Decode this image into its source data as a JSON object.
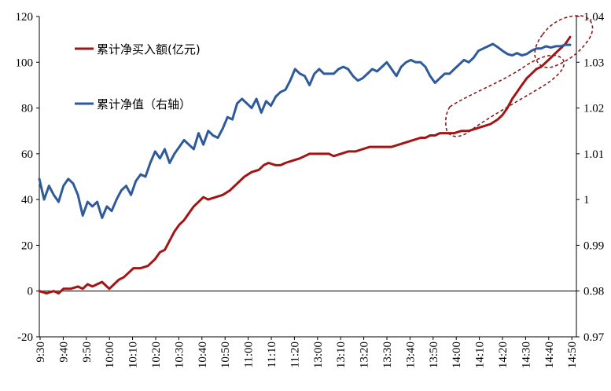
{
  "chart_data": {
    "type": "line",
    "x_ticks": [
      "9:30",
      "9:40",
      "9:50",
      "10:00",
      "10:10",
      "10:20",
      "10:30",
      "10:40",
      "10:50",
      "11:00",
      "11:10",
      "11:20",
      "13:00",
      "13:10",
      "13:20",
      "13:30",
      "13:40",
      "13:50",
      "14:00",
      "14:10",
      "14:20",
      "14:30",
      "14:40",
      "14:50"
    ],
    "left_axis": {
      "ylim": [
        -20,
        120
      ],
      "ticks": [
        "-20",
        "0",
        "20",
        "40",
        "60",
        "80",
        "100",
        "120"
      ]
    },
    "right_axis": {
      "ylim": [
        0.97,
        1.04
      ],
      "ticks": [
        "0.97",
        "0.98",
        "0.99",
        "1",
        "1.01",
        "1.02",
        "1.03",
        "1.04"
      ]
    },
    "grid": false,
    "legend_position": "top-left",
    "series": [
      {
        "name": "累计净买入额(亿元)",
        "axis": "left",
        "color": "#A31515",
        "points": [
          [
            0,
            0
          ],
          [
            3,
            -1
          ],
          [
            6,
            0
          ],
          [
            8,
            -1
          ],
          [
            10,
            1
          ],
          [
            13,
            1
          ],
          [
            16,
            2
          ],
          [
            18,
            1
          ],
          [
            20,
            3
          ],
          [
            22,
            2
          ],
          [
            24,
            3
          ],
          [
            26,
            4
          ],
          [
            27,
            3
          ],
          [
            29,
            1
          ],
          [
            31,
            3
          ],
          [
            33,
            5
          ],
          [
            35,
            6
          ],
          [
            37,
            8
          ],
          [
            39,
            10
          ],
          [
            42,
            10
          ],
          [
            45,
            11
          ],
          [
            48,
            14
          ],
          [
            50,
            17
          ],
          [
            52,
            18
          ],
          [
            54,
            22
          ],
          [
            56,
            26
          ],
          [
            58,
            29
          ],
          [
            60,
            31
          ],
          [
            62,
            34
          ],
          [
            64,
            37
          ],
          [
            66,
            39
          ],
          [
            68,
            41
          ],
          [
            70,
            40
          ],
          [
            73,
            41
          ],
          [
            76,
            42
          ],
          [
            79,
            44
          ],
          [
            81,
            46
          ],
          [
            83,
            48
          ],
          [
            85,
            50
          ],
          [
            88,
            52
          ],
          [
            91,
            53
          ],
          [
            93,
            55
          ],
          [
            95,
            56
          ],
          [
            98,
            55
          ],
          [
            100,
            55
          ],
          [
            102,
            56
          ],
          [
            105,
            57
          ],
          [
            108,
            58
          ],
          [
            110,
            59
          ],
          [
            112,
            60
          ],
          [
            115,
            60
          ],
          [
            117,
            60
          ],
          [
            120,
            60
          ],
          [
            122,
            59
          ],
          [
            125,
            60
          ],
          [
            128,
            61
          ],
          [
            131,
            61
          ],
          [
            134,
            62
          ],
          [
            137,
            63
          ],
          [
            140,
            63
          ],
          [
            143,
            63
          ],
          [
            146,
            63
          ],
          [
            149,
            64
          ],
          [
            152,
            65
          ],
          [
            155,
            66
          ],
          [
            158,
            67
          ],
          [
            160,
            67
          ],
          [
            162,
            68
          ],
          [
            164,
            68
          ],
          [
            166,
            69
          ],
          [
            169,
            69
          ],
          [
            172,
            69
          ],
          [
            175,
            70
          ],
          [
            178,
            70
          ],
          [
            181,
            71
          ],
          [
            184,
            72
          ],
          [
            187,
            73
          ],
          [
            190,
            75
          ],
          [
            192,
            77
          ],
          [
            194,
            80
          ],
          [
            196,
            84
          ],
          [
            198,
            87
          ],
          [
            200,
            90
          ],
          [
            202,
            93
          ],
          [
            204,
            95
          ],
          [
            206,
            97
          ],
          [
            208,
            98
          ],
          [
            210,
            100
          ],
          [
            212,
            102
          ],
          [
            214,
            104
          ],
          [
            216,
            106
          ],
          [
            218,
            108
          ],
          [
            220,
            111
          ]
        ]
      },
      {
        "name": "累计净值（右轴）",
        "axis": "right",
        "color": "#2E5A9C",
        "points": [
          [
            0,
            1.0045
          ],
          [
            2,
            1.0
          ],
          [
            4,
            1.003
          ],
          [
            6,
            1.001
          ],
          [
            8,
            0.9995
          ],
          [
            10,
            1.003
          ],
          [
            12,
            1.0045
          ],
          [
            14,
            1.0035
          ],
          [
            16,
            1.001
          ],
          [
            18,
            0.9965
          ],
          [
            20,
            0.9995
          ],
          [
            22,
            0.9985
          ],
          [
            24,
            0.9995
          ],
          [
            26,
            0.996
          ],
          [
            28,
            0.9985
          ],
          [
            30,
            0.9975
          ],
          [
            32,
            1.0
          ],
          [
            34,
            1.002
          ],
          [
            36,
            1.003
          ],
          [
            38,
            1.001
          ],
          [
            40,
            1.004
          ],
          [
            42,
            1.0055
          ],
          [
            44,
            1.005
          ],
          [
            46,
            1.008
          ],
          [
            48,
            1.0105
          ],
          [
            50,
            1.009
          ],
          [
            52,
            1.011
          ],
          [
            54,
            1.008
          ],
          [
            56,
            1.01
          ],
          [
            58,
            1.0115
          ],
          [
            60,
            1.013
          ],
          [
            62,
            1.012
          ],
          [
            64,
            1.011
          ],
          [
            66,
            1.0145
          ],
          [
            68,
            1.012
          ],
          [
            70,
            1.015
          ],
          [
            72,
            1.014
          ],
          [
            74,
            1.0135
          ],
          [
            76,
            1.0155
          ],
          [
            78,
            1.018
          ],
          [
            80,
            1.0175
          ],
          [
            82,
            1.021
          ],
          [
            84,
            1.022
          ],
          [
            86,
            1.021
          ],
          [
            88,
            1.02
          ],
          [
            90,
            1.022
          ],
          [
            92,
            1.019
          ],
          [
            94,
            1.0215
          ],
          [
            96,
            1.0205
          ],
          [
            98,
            1.0225
          ],
          [
            100,
            1.0235
          ],
          [
            102,
            1.024
          ],
          [
            104,
            1.026
          ],
          [
            106,
            1.0285
          ],
          [
            108,
            1.0275
          ],
          [
            110,
            1.027
          ],
          [
            112,
            1.025
          ],
          [
            114,
            1.0275
          ],
          [
            116,
            1.0285
          ],
          [
            118,
            1.0275
          ],
          [
            120,
            1.0275
          ],
          [
            122,
            1.0275
          ],
          [
            124,
            1.0285
          ],
          [
            126,
            1.029
          ],
          [
            128,
            1.0285
          ],
          [
            130,
            1.027
          ],
          [
            132,
            1.026
          ],
          [
            134,
            1.0265
          ],
          [
            136,
            1.0275
          ],
          [
            138,
            1.0285
          ],
          [
            140,
            1.028
          ],
          [
            142,
            1.029
          ],
          [
            144,
            1.03
          ],
          [
            146,
            1.0285
          ],
          [
            148,
            1.027
          ],
          [
            150,
            1.029
          ],
          [
            152,
            1.03
          ],
          [
            154,
            1.0305
          ],
          [
            156,
            1.03
          ],
          [
            158,
            1.03
          ],
          [
            160,
            1.029
          ],
          [
            162,
            1.027
          ],
          [
            164,
            1.0255
          ],
          [
            166,
            1.0265
          ],
          [
            168,
            1.0275
          ],
          [
            170,
            1.0275
          ],
          [
            172,
            1.0285
          ],
          [
            174,
            1.0295
          ],
          [
            176,
            1.0305
          ],
          [
            178,
            1.03
          ],
          [
            180,
            1.031
          ],
          [
            182,
            1.0325
          ],
          [
            184,
            1.033
          ],
          [
            186,
            1.0335
          ],
          [
            188,
            1.034
          ],
          [
            190,
            1.0333
          ],
          [
            192,
            1.0325
          ],
          [
            194,
            1.0318
          ],
          [
            196,
            1.0315
          ],
          [
            198,
            1.032
          ],
          [
            200,
            1.0315
          ],
          [
            202,
            1.0318
          ],
          [
            204,
            1.0325
          ],
          [
            206,
            1.033
          ],
          [
            208,
            1.033
          ],
          [
            210,
            1.0335
          ],
          [
            212,
            1.0332
          ],
          [
            214,
            1.0335
          ],
          [
            216,
            1.0335
          ],
          [
            218,
            1.0338
          ],
          [
            220,
            1.0338
          ]
        ]
      }
    ]
  }
}
